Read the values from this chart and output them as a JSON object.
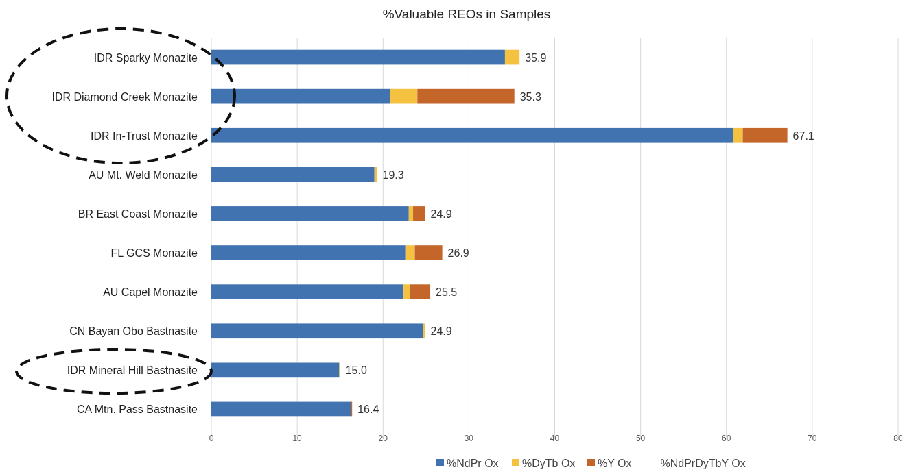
{
  "chart_data": {
    "type": "bar",
    "orientation": "horizontal",
    "stacked": true,
    "title": "%Valuable REOs in Samples",
    "categories": [
      "IDR Sparky Monazite",
      "IDR Diamond Creek Monazite",
      "IDR In-Trust Monazite",
      "AU Mt. Weld Monazite",
      "BR East Coast Monazite",
      "FL GCS Monazite",
      "AU Capel Monazite",
      "CN Bayan Obo Bastnasite",
      "IDR Mineral Hill Bastnasite",
      "CA Mtn. Pass Bastnasite"
    ],
    "series": [
      {
        "name": "%NdPr Ox",
        "color": "#4073b0",
        "values": [
          34.2,
          20.8,
          60.8,
          19.0,
          23.0,
          22.6,
          22.4,
          24.7,
          14.9,
          16.3
        ]
      },
      {
        "name": "%DyTb Ox",
        "color": "#f5c141",
        "values": [
          1.7,
          3.2,
          1.1,
          0.3,
          0.5,
          1.1,
          0.7,
          0.2,
          0.1,
          0
        ]
      },
      {
        "name": "%Y Ox",
        "color": "#c4652a",
        "values": [
          0,
          11.3,
          5.2,
          0,
          1.4,
          3.2,
          2.4,
          0,
          0,
          0.1
        ]
      },
      {
        "name": "%NdPrDyTbY Ox",
        "color": null,
        "values": [
          null,
          null,
          null,
          null,
          null,
          null,
          null,
          null,
          null,
          null
        ]
      }
    ],
    "totals": [
      "35.9",
      "35.3",
      "67.1",
      "19.3",
      "24.9",
      "26.9",
      "25.5",
      "24.9",
      "15.0",
      "16.4"
    ],
    "xlim": [
      0,
      80
    ],
    "xticks": [
      0,
      10,
      20,
      30,
      40,
      50,
      60,
      70,
      80
    ],
    "grid": "x",
    "legend": "bottom"
  }
}
